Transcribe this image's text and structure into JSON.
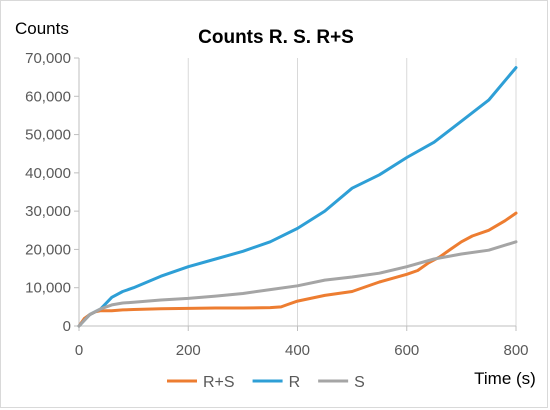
{
  "chart_data": {
    "type": "line",
    "title": "Counts R. S. R+S",
    "xlabel": "Time (s)",
    "ylabel": "Counts",
    "xlim": [
      0,
      800
    ],
    "ylim": [
      0,
      70000
    ],
    "x_ticks": [
      0,
      200,
      400,
      600,
      800
    ],
    "y_ticks": [
      0,
      10000,
      20000,
      30000,
      40000,
      50000,
      60000,
      70000
    ],
    "x_tick_labels": [
      "0",
      "200",
      "400",
      "600",
      "800"
    ],
    "y_tick_labels": [
      "0",
      "10,000",
      "20,000",
      "30,000",
      "40,000",
      "50,000",
      "60,000",
      "70,000"
    ],
    "grid": "vertical",
    "legend": "bottom",
    "series": [
      {
        "name": "R+S",
        "color": "#ed7d31",
        "x": [
          0,
          10,
          20,
          30,
          40,
          60,
          80,
          100,
          150,
          200,
          250,
          300,
          350,
          370,
          380,
          400,
          450,
          500,
          550,
          600,
          620,
          640,
          660,
          680,
          700,
          720,
          750,
          780,
          800
        ],
        "y": [
          0,
          2000,
          3000,
          3700,
          4000,
          4000,
          4200,
          4300,
          4500,
          4600,
          4700,
          4700,
          4800,
          5000,
          5500,
          6500,
          8000,
          9000,
          11500,
          13500,
          14500,
          16500,
          18000,
          20000,
          22000,
          23500,
          25000,
          27500,
          29500
        ]
      },
      {
        "name": "R",
        "color": "#2e9fd6",
        "x": [
          0,
          20,
          40,
          60,
          80,
          100,
          150,
          200,
          250,
          300,
          350,
          400,
          450,
          500,
          550,
          600,
          650,
          700,
          750,
          800
        ],
        "y": [
          0,
          3000,
          4500,
          7500,
          9000,
          10000,
          13000,
          15500,
          17500,
          19500,
          22000,
          25500,
          30000,
          36000,
          39500,
          44000,
          48000,
          53500,
          59000,
          67500
        ]
      },
      {
        "name": "S",
        "color": "#a5a5a5",
        "x": [
          0,
          20,
          40,
          60,
          80,
          100,
          150,
          200,
          250,
          300,
          350,
          400,
          450,
          500,
          550,
          600,
          650,
          700,
          750,
          800
        ],
        "y": [
          0,
          3000,
          4500,
          5500,
          6000,
          6200,
          6800,
          7200,
          7800,
          8500,
          9500,
          10500,
          12000,
          12800,
          13800,
          15500,
          17500,
          18800,
          19800,
          22000
        ]
      }
    ]
  }
}
